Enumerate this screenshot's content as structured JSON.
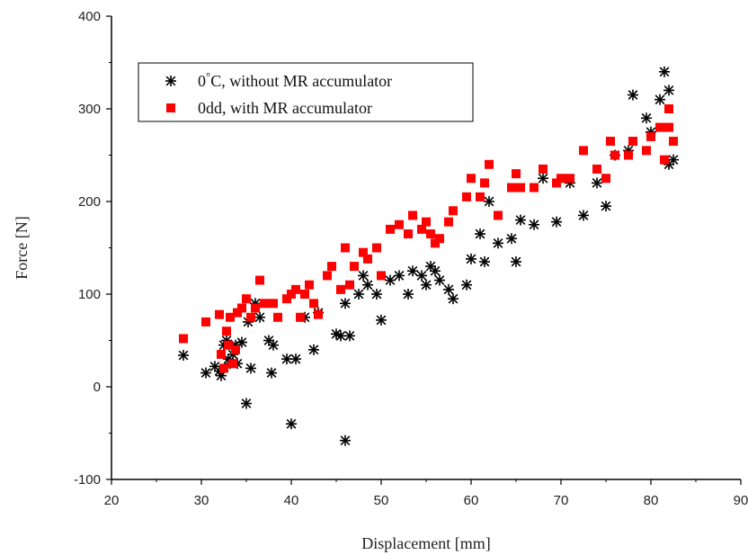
{
  "chart_data": {
    "type": "scatter",
    "xlabel": "Displacement [mm]",
    "ylabel": "Force [N]",
    "xlim": [
      20,
      90
    ],
    "ylim": [
      -100,
      400
    ],
    "x_ticks": [
      20,
      30,
      40,
      50,
      60,
      70,
      80,
      90
    ],
    "y_ticks": [
      -100,
      0,
      100,
      200,
      300,
      400
    ],
    "x_tick_labels": [
      "20",
      "30",
      "40",
      "50",
      "60",
      "70",
      "80",
      "90"
    ],
    "y_tick_labels": [
      "-100",
      "0",
      "100",
      "200",
      "300",
      "400"
    ],
    "grid": false,
    "legend_position": "top-left",
    "series": [
      {
        "name": "0°C, without MR accumulator",
        "marker": "asterisk",
        "color": "#000000",
        "x": [
          28,
          30.5,
          31.5,
          32,
          32.2,
          32.5,
          32.8,
          33,
          33.2,
          33.5,
          33.8,
          34,
          34.5,
          35,
          35.2,
          35.5,
          36,
          36.5,
          37.5,
          37.8,
          38,
          39.5,
          40,
          40.5,
          41.5,
          42.5,
          43,
          45,
          45.5,
          46,
          46,
          46.5,
          47.5,
          48,
          48.5,
          49.5,
          50,
          51,
          52,
          53,
          53.5,
          54.5,
          55,
          55.5,
          56,
          56.5,
          57.5,
          58,
          59.5,
          60,
          61,
          61.5,
          62,
          63,
          64.5,
          65,
          65.5,
          67,
          68,
          69.5,
          71,
          72.5,
          74,
          75,
          76,
          77.5,
          78,
          79.5,
          80,
          81,
          81.5,
          82,
          82,
          82.5
        ],
        "y": [
          34,
          15,
          22,
          17,
          12,
          45,
          50,
          30,
          25,
          35,
          45,
          25,
          48,
          -18,
          70,
          20,
          90,
          75,
          50,
          15,
          45,
          30,
          -40,
          30,
          75,
          40,
          80,
          57,
          55,
          -58,
          90,
          55,
          100,
          120,
          110,
          100,
          72,
          115,
          120,
          100,
          125,
          120,
          110,
          130,
          125,
          115,
          105,
          95,
          110,
          138,
          165,
          135,
          200,
          155,
          160,
          135,
          180,
          175,
          225,
          178,
          220,
          185,
          220,
          195,
          250,
          255,
          315,
          290,
          275,
          310,
          340,
          240,
          320,
          245
        ]
      },
      {
        "name": "0dd, with MR accumulator",
        "marker": "square",
        "color": "#ff0000",
        "x": [
          28,
          30.5,
          32,
          32.2,
          32.5,
          32.8,
          33,
          33.2,
          33.5,
          33.8,
          34,
          34.5,
          35,
          35.5,
          36,
          36.5,
          37,
          38,
          38.5,
          39.5,
          40,
          40.5,
          41,
          41.5,
          42,
          42.5,
          43,
          44,
          44.5,
          45.5,
          46,
          46.5,
          47,
          48,
          48.5,
          49.5,
          50,
          51,
          52,
          53,
          53.5,
          54.5,
          55,
          55.5,
          56,
          56.5,
          57.5,
          58,
          59.5,
          60,
          61,
          61.5,
          62,
          63,
          64.5,
          65,
          65.5,
          67,
          68,
          69.5,
          70,
          71,
          72.5,
          74,
          75,
          75.5,
          76,
          77.5,
          78,
          79.5,
          80,
          81,
          81.5,
          82,
          82,
          82.5
        ],
        "y": [
          52,
          70,
          78,
          35,
          20,
          60,
          45,
          75,
          25,
          40,
          80,
          85,
          95,
          75,
          85,
          115,
          90,
          90,
          75,
          95,
          100,
          105,
          75,
          100,
          110,
          90,
          78,
          120,
          130,
          105,
          150,
          110,
          130,
          145,
          138,
          150,
          120,
          170,
          175,
          165,
          185,
          170,
          178,
          165,
          155,
          160,
          178,
          190,
          205,
          225,
          205,
          220,
          240,
          185,
          215,
          230,
          215,
          215,
          235,
          220,
          225,
          225,
          255,
          235,
          225,
          265,
          250,
          250,
          265,
          255,
          270,
          280,
          245,
          300,
          280,
          265
        ]
      }
    ]
  }
}
